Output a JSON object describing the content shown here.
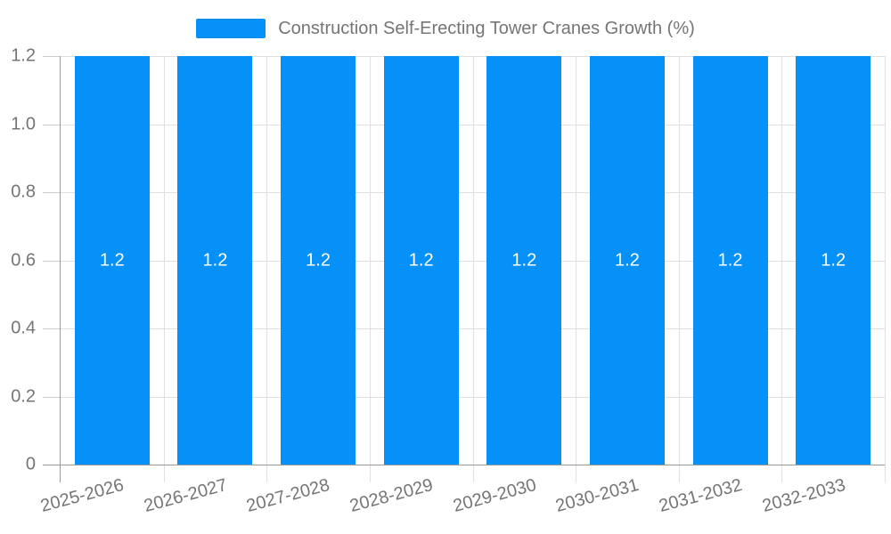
{
  "legend": {
    "label": "Construction Self-Erecting Tower Cranes Growth (%)"
  },
  "chart_data": {
    "type": "bar",
    "title": "Construction Self-Erecting Tower Cranes Growth (%)",
    "series_name": "Construction Self-Erecting Tower Cranes Growth (%)",
    "categories": [
      "2025-2026",
      "2026-2027",
      "2027-2028",
      "2028-2029",
      "2029-2030",
      "2030-2031",
      "2031-2032",
      "2032-2033"
    ],
    "values": [
      1.2,
      1.2,
      1.2,
      1.2,
      1.2,
      1.2,
      1.2,
      1.2
    ],
    "value_labels": [
      "1.2",
      "1.2",
      "1.2",
      "1.2",
      "1.2",
      "1.2",
      "1.2",
      "1.2"
    ],
    "xlabel": "",
    "ylabel": "",
    "ylim": [
      0,
      1.2
    ],
    "yticks": [
      0,
      0.2,
      0.4,
      0.6,
      0.8,
      1.0,
      1.2
    ],
    "ytick_labels": [
      "0",
      "0.2",
      "0.4",
      "0.6",
      "0.8",
      "1.0",
      "1.2"
    ],
    "grid": true,
    "legend_position": "top-center",
    "x_label_rotation_deg": -15,
    "colors": {
      "bar": "#0691f8",
      "value_label": "#ffffff",
      "axis_line": "#999999",
      "gridline": "#e0e0e0",
      "tick_stub": "#cccccc",
      "tick_label": "#757575",
      "legend_text": "#757575",
      "background": "#ffffff"
    }
  }
}
